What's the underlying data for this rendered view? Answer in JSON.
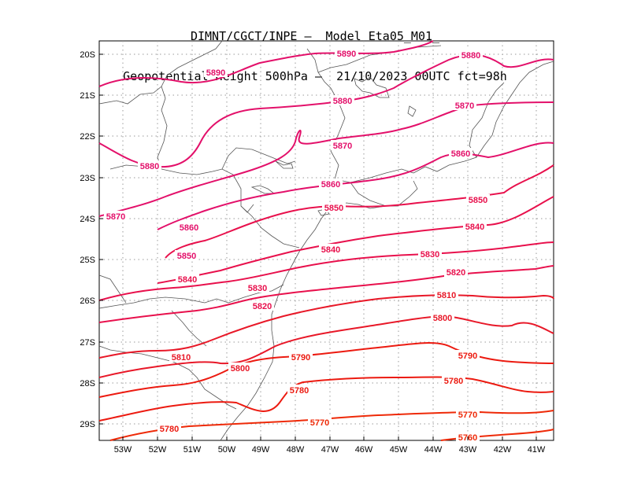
{
  "header": {
    "line1": "DIMNT/CGCT/INPE –  Model Eta05_M01_",
    "line2": "Geopotential Height 500hPa –  21/10/2023 00UTC fct=98h"
  },
  "axes": {
    "lat_labels": [
      "20S",
      "21S",
      "22S",
      "23S",
      "24S",
      "25S",
      "26S",
      "27S",
      "28S",
      "29S"
    ],
    "lon_labels": [
      "53W",
      "52W",
      "51W",
      "50W",
      "49W",
      "48W",
      "47W",
      "46W",
      "45W",
      "44W",
      "43W",
      "42W",
      "41W"
    ]
  },
  "contour_labels": [
    {
      "text": "5890",
      "c": "#e3106a"
    },
    {
      "text": "5890",
      "c": "#e3106a"
    },
    {
      "text": "5880",
      "c": "#e3106a"
    },
    {
      "text": "5880",
      "c": "#e3106a"
    },
    {
      "text": "5880",
      "c": "#e3106a"
    },
    {
      "text": "5870",
      "c": "#e3106a"
    },
    {
      "text": "5870",
      "c": "#e3106a"
    },
    {
      "text": "5870",
      "c": "#e3106a"
    },
    {
      "text": "5860",
      "c": "#e3106a"
    },
    {
      "text": "5860",
      "c": "#e3106a"
    },
    {
      "text": "5860",
      "c": "#e3106a"
    },
    {
      "text": "5850",
      "c": "#e3106a"
    },
    {
      "text": "5850",
      "c": "#e8104c"
    },
    {
      "text": "5850",
      "c": "#e8104c"
    },
    {
      "text": "5840",
      "c": "#e8104c"
    },
    {
      "text": "5840",
      "c": "#e8104c"
    },
    {
      "text": "5840",
      "c": "#e8104c"
    },
    {
      "text": "5830",
      "c": "#e8104c"
    },
    {
      "text": "5830",
      "c": "#e8104c"
    },
    {
      "text": "5820",
      "c": "#e8104c"
    },
    {
      "text": "5820",
      "c": "#e8104c"
    },
    {
      "text": "5810",
      "c": "#e81828"
    },
    {
      "text": "5810",
      "c": "#e81828"
    },
    {
      "text": "5800",
      "c": "#e81828"
    },
    {
      "text": "5800",
      "c": "#e81828"
    },
    {
      "text": "5790",
      "c": "#ec1a10"
    },
    {
      "text": "5790",
      "c": "#ec1a10"
    },
    {
      "text": "5780",
      "c": "#ec1a10"
    },
    {
      "text": "5780",
      "c": "#ec1a10"
    },
    {
      "text": "5780",
      "c": "#ec1a10"
    },
    {
      "text": "5770",
      "c": "#ee2a08"
    },
    {
      "text": "5770",
      "c": "#ee2a08"
    },
    {
      "text": "5760",
      "c": "#ee2a08"
    }
  ]
}
